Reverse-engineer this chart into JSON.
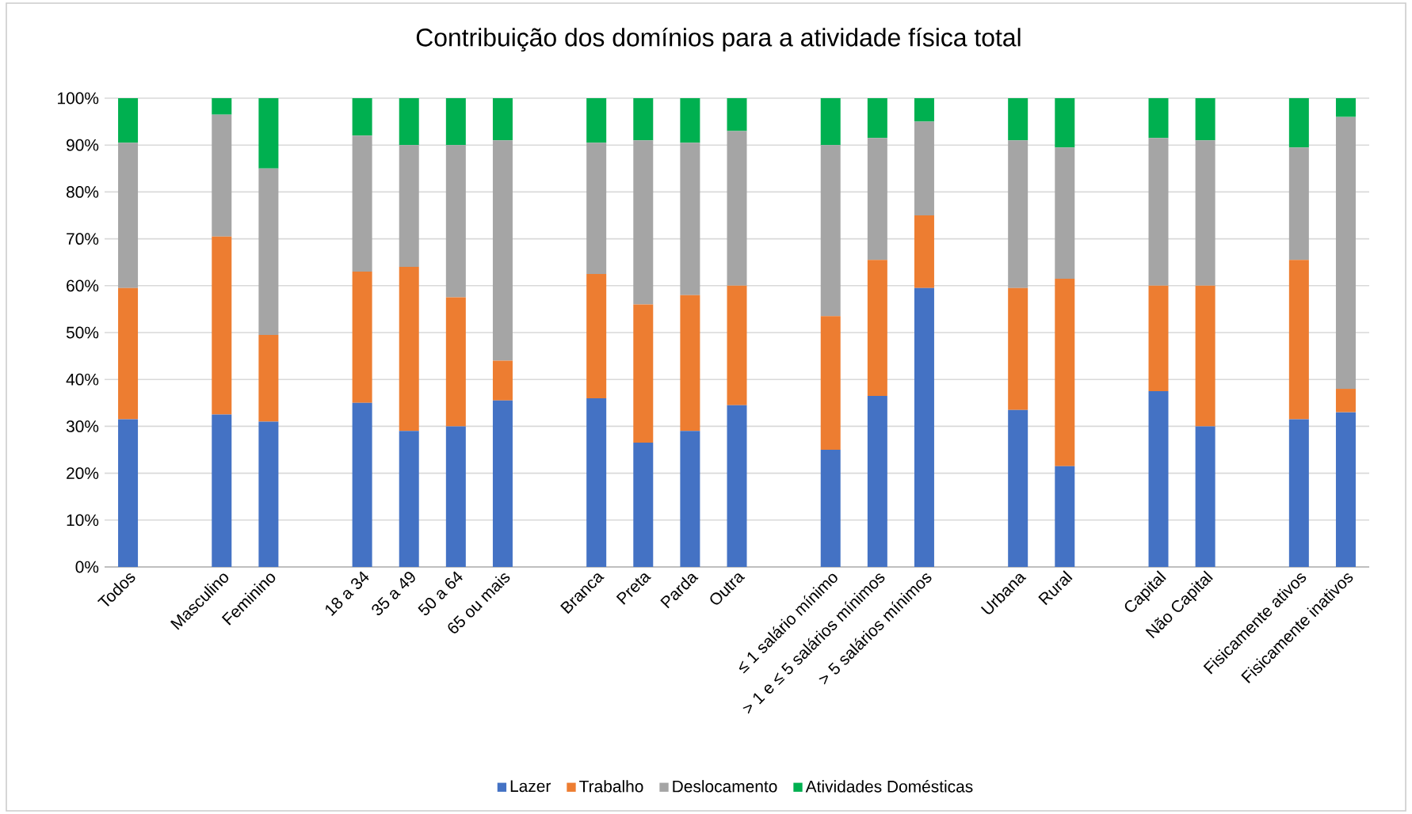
{
  "chart_data": {
    "type": "bar",
    "stacked": true,
    "title": "Contribuição dos domínios para a atividade física total",
    "categories": [
      "Todos",
      null,
      "Masculino",
      "Feminino",
      null,
      "18 a 34",
      "35 a 49",
      "50 a 64",
      "65 ou mais",
      null,
      "Branca",
      "Preta",
      "Parda",
      "Outra",
      null,
      "≤ 1 salário mínimo",
      "> 1 e ≤ 5 salários mínimos",
      "> 5 salários mínimos",
      null,
      "Urbana",
      "Rural",
      null,
      "Capital",
      "Não Capital",
      null,
      "Fisicamente ativos",
      "Fisicamente inativos"
    ],
    "series": [
      {
        "name": "Lazer",
        "color": "#4472c4",
        "values": [
          31.5,
          null,
          32.5,
          31,
          null,
          35,
          29,
          30,
          35.5,
          null,
          36,
          26.5,
          29,
          34.5,
          null,
          25,
          36.5,
          59.5,
          null,
          33.5,
          21.5,
          null,
          37.5,
          30,
          null,
          31.5,
          33
        ]
      },
      {
        "name": "Trabalho",
        "color": "#ed7d31",
        "values": [
          28,
          null,
          38,
          18.5,
          null,
          28,
          35,
          27.5,
          8.5,
          null,
          26.5,
          29.5,
          29,
          25.5,
          null,
          28.5,
          29,
          15.5,
          null,
          26,
          40,
          null,
          22.5,
          30,
          null,
          34,
          5
        ]
      },
      {
        "name": "Deslocamento",
        "color": "#a5a5a5",
        "values": [
          31,
          null,
          26,
          35.5,
          null,
          29,
          26,
          32.5,
          47,
          null,
          28,
          35,
          32.5,
          33,
          null,
          36.5,
          26,
          20,
          null,
          31.5,
          28,
          null,
          31.5,
          31,
          null,
          24,
          58
        ]
      },
      {
        "name": "Atividades Domésticas",
        "color": "#00b050",
        "values": [
          9.5,
          null,
          3.5,
          15,
          null,
          8,
          10,
          10,
          9,
          null,
          9.5,
          9,
          9.5,
          7,
          null,
          10,
          8.5,
          5,
          null,
          9,
          10.5,
          null,
          8.5,
          9,
          null,
          10.5,
          4
        ]
      }
    ],
    "ylim": [
      0,
      100
    ],
    "yticks": [
      {
        "value": 0,
        "label": "0%"
      },
      {
        "value": 10,
        "label": "10%"
      },
      {
        "value": 20,
        "label": "20%"
      },
      {
        "value": 30,
        "label": "30%"
      },
      {
        "value": 40,
        "label": "40%"
      },
      {
        "value": 50,
        "label": "50%"
      },
      {
        "value": 60,
        "label": "60%"
      },
      {
        "value": 70,
        "label": "70%"
      },
      {
        "value": 80,
        "label": "80%"
      },
      {
        "value": 90,
        "label": "90%"
      },
      {
        "value": 100,
        "label": "100%"
      }
    ],
    "grid": "y",
    "legend": "bottom"
  }
}
